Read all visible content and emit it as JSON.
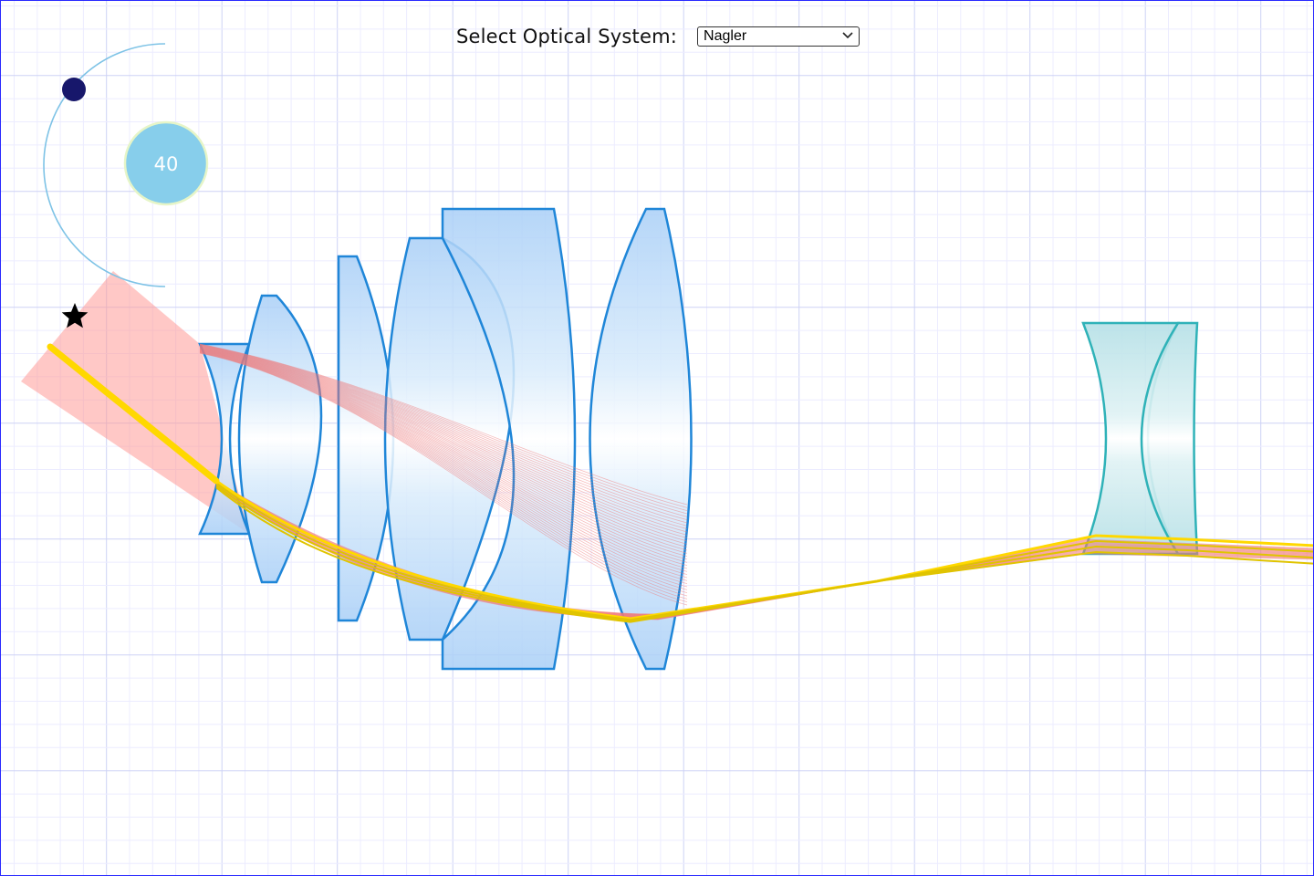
{
  "header": {
    "label": "Select Optical System:",
    "selected_system": "Nagler"
  },
  "angle_control": {
    "value": "40",
    "arc_color": "#7ec3e6",
    "knob_color": "#17176b",
    "badge_color": "#87ceeb",
    "badge_ring_color": "#e6f5c8"
  },
  "colors": {
    "grid_minor": "#ececff",
    "grid_major": "#cdd2f5",
    "lens_stroke": "#1f86d8",
    "lens_fill": "#bcdcf5",
    "lens_highlight": "#ffffff",
    "eyepiece_stroke": "#2fb2b8",
    "eyepiece_fill": "#bfe6ea",
    "beam_fill": "#ff9a98",
    "ray_red": "#f07a7a",
    "ray_yellow": "#ffd800",
    "star": "#000000"
  },
  "icons": {
    "marker": "star-icon",
    "dropdown": "chevron-down-icon"
  }
}
